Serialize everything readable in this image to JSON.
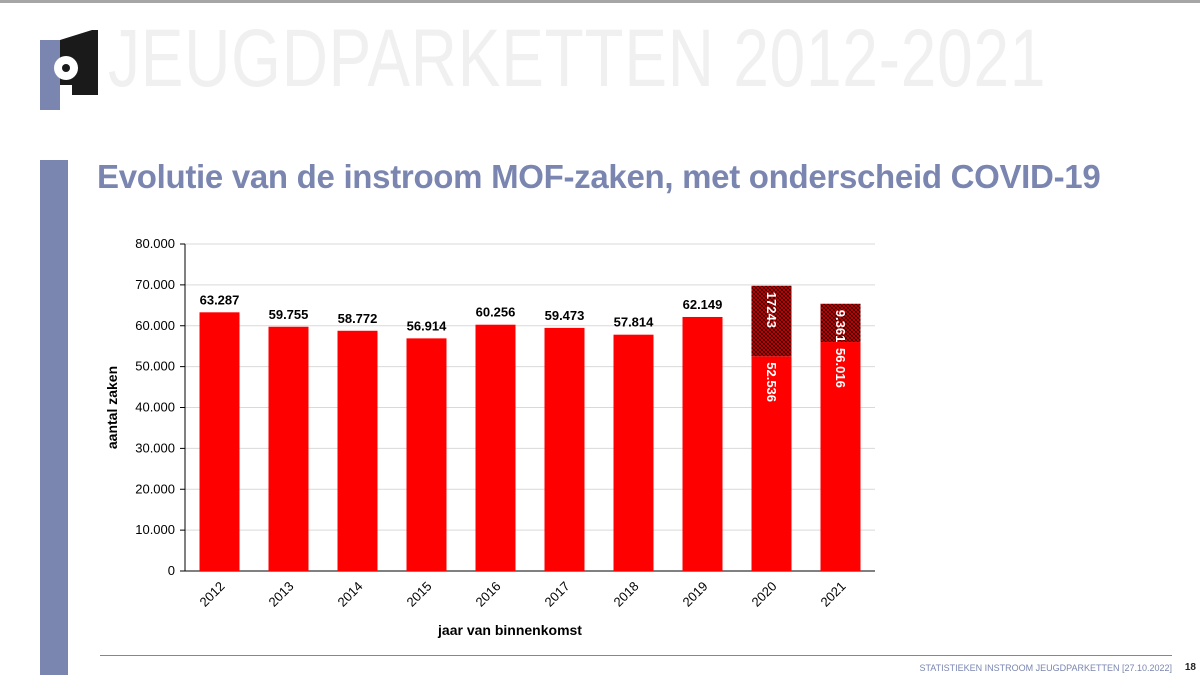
{
  "header": {
    "watermark": "JEUGDPARKETTEN 2012-2021"
  },
  "slide": {
    "title": "Evolutie van de instroom MOF-zaken, met onderscheid COVID-19"
  },
  "footer": {
    "text": "STATISTIEKEN INSTROOM JEUGDPARKETTEN  [27.10.2022]",
    "page": "18"
  },
  "colors": {
    "accent": "#7a86b0",
    "bar": "#ff0000",
    "covid_pattern_bg": "#1a0000",
    "covid_pattern_fg": "#cc0000"
  },
  "chart_data": {
    "type": "bar",
    "stacked": true,
    "xlabel": "jaar van binnenkomst",
    "ylabel": "aantal zaken",
    "ylim": [
      0,
      80000
    ],
    "yticks": [
      0,
      10000,
      20000,
      30000,
      40000,
      50000,
      60000,
      70000,
      80000
    ],
    "ytick_labels": [
      "0",
      "10.000",
      "20.000",
      "30.000",
      "40.000",
      "50.000",
      "60.000",
      "70.000",
      "80.000"
    ],
    "grid": true,
    "categories": [
      "2012",
      "2013",
      "2014",
      "2015",
      "2016",
      "2017",
      "2018",
      "2019",
      "2020",
      "2021"
    ],
    "series": [
      {
        "values": [
          63287,
          59755,
          58772,
          56914,
          60256,
          59473,
          57814,
          62149,
          52536,
          56016
        ],
        "labels": [
          "63.287",
          "59.755",
          "58.772",
          "56.914",
          "60.256",
          "59.473",
          "57.814",
          "62.149",
          "52.536",
          "56.016"
        ]
      },
      {
        "values": [
          0,
          0,
          0,
          0,
          0,
          0,
          0,
          0,
          17243,
          9361
        ],
        "labels": [
          "",
          "",
          "",
          "",
          "",
          "",
          "",
          "",
          "17243",
          "9.361"
        ]
      }
    ]
  }
}
